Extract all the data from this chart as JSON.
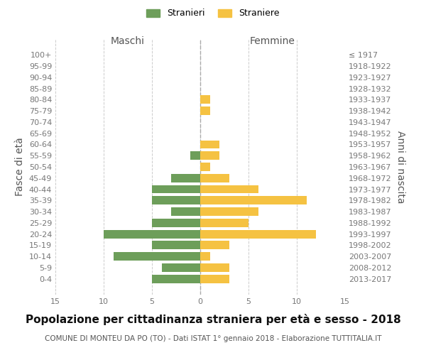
{
  "age_groups": [
    "100+",
    "95-99",
    "90-94",
    "85-89",
    "80-84",
    "75-79",
    "70-74",
    "65-69",
    "60-64",
    "55-59",
    "50-54",
    "45-49",
    "40-44",
    "35-39",
    "30-34",
    "25-29",
    "20-24",
    "15-19",
    "10-14",
    "5-9",
    "0-4"
  ],
  "birth_years": [
    "≤ 1917",
    "1918-1922",
    "1923-1927",
    "1928-1932",
    "1933-1937",
    "1938-1942",
    "1943-1947",
    "1948-1952",
    "1953-1957",
    "1958-1962",
    "1963-1967",
    "1968-1972",
    "1973-1977",
    "1978-1982",
    "1983-1987",
    "1988-1992",
    "1993-1997",
    "1998-2002",
    "2003-2007",
    "2008-2012",
    "2013-2017"
  ],
  "maschi": [
    0,
    0,
    0,
    0,
    0,
    0,
    0,
    0,
    0,
    1,
    0,
    3,
    5,
    5,
    3,
    5,
    10,
    5,
    9,
    4,
    5
  ],
  "femmine": [
    0,
    0,
    0,
    0,
    1,
    1,
    0,
    0,
    2,
    2,
    1,
    3,
    6,
    11,
    6,
    5,
    12,
    3,
    1,
    3,
    3
  ],
  "maschi_color": "#6d9e5a",
  "femmine_color": "#f5c242",
  "title": "Popolazione per cittadinanza straniera per età e sesso - 2018",
  "subtitle": "COMUNE DI MONTEU DA PO (TO) - Dati ISTAT 1° gennaio 2018 - Elaborazione TUTTITALIA.IT",
  "xlabel_left": "Maschi",
  "xlabel_right": "Femmine",
  "ylabel_left": "Fasce di età",
  "ylabel_right": "Anni di nascita",
  "legend_maschi": "Stranieri",
  "legend_femmine": "Straniere",
  "xlim": 15,
  "background_color": "#ffffff",
  "grid_color": "#cccccc",
  "bar_height": 0.75,
  "title_fontsize": 11,
  "subtitle_fontsize": 7.5,
  "tick_fontsize": 8,
  "label_fontsize": 10
}
